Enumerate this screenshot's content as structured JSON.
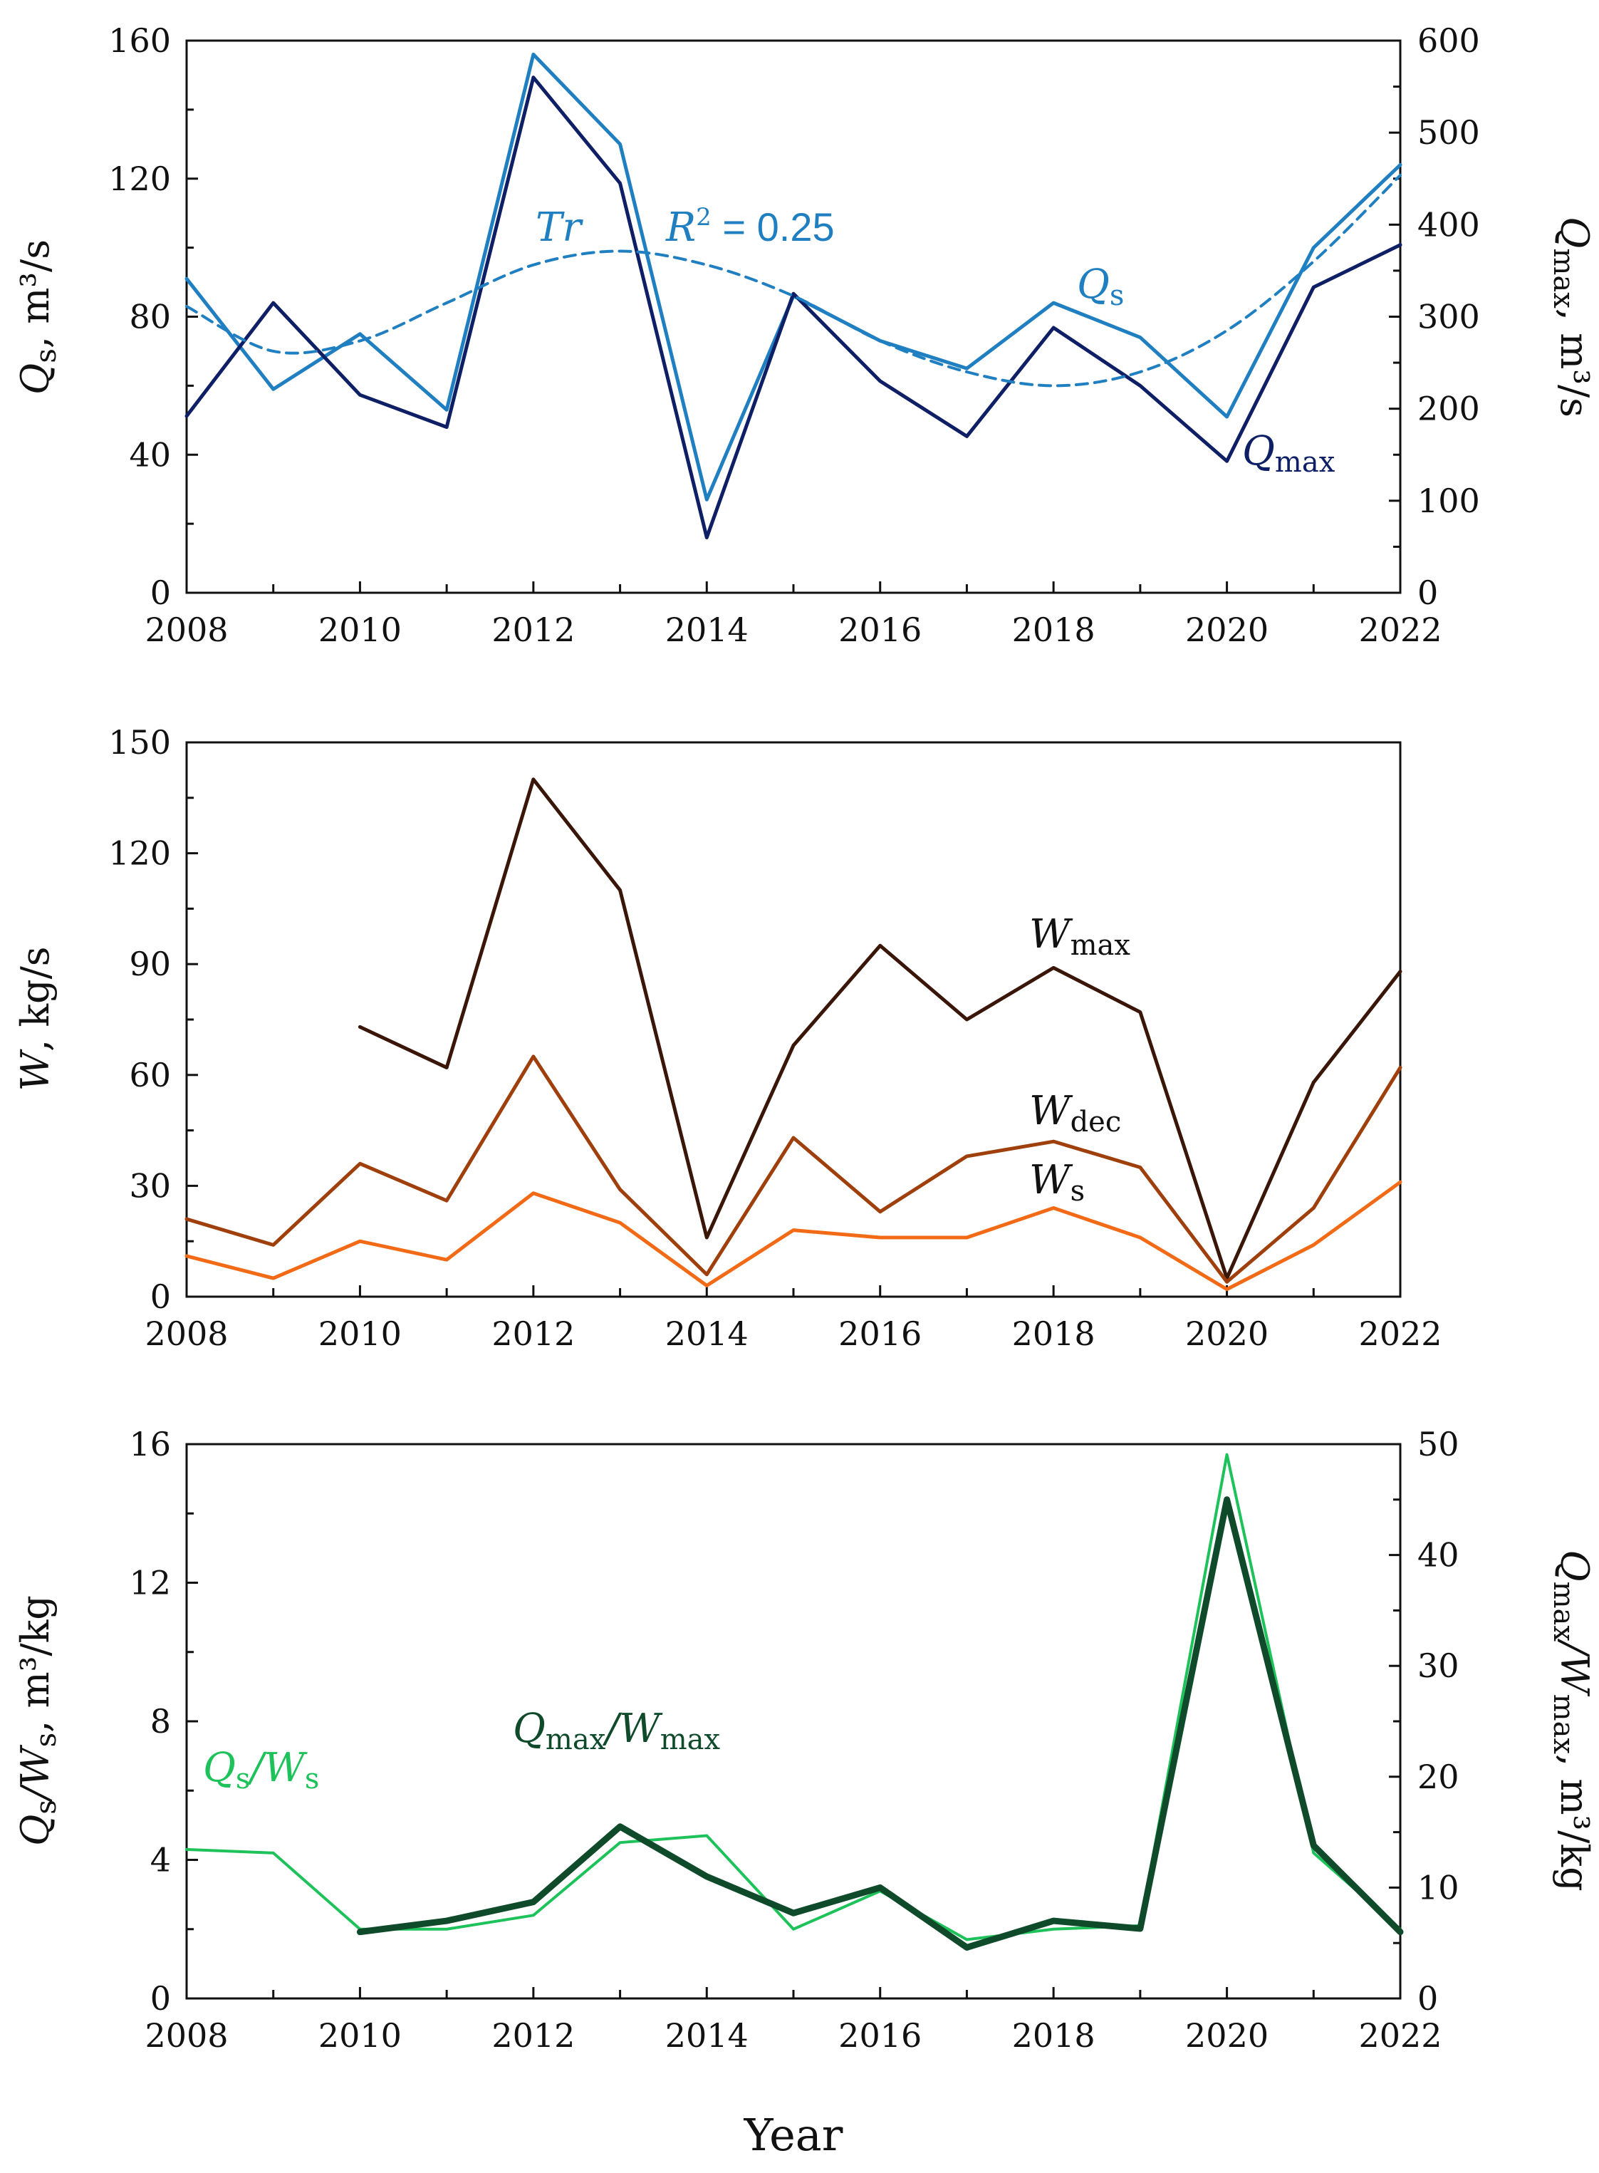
{
  "chart_data": [
    {
      "type": "line",
      "x": [
        2008,
        2009,
        2010,
        2011,
        2012,
        2013,
        2014,
        2015,
        2016,
        2017,
        2018,
        2019,
        2020,
        2021,
        2022
      ],
      "xlim": [
        2008,
        2022
      ],
      "xticks": [
        "2008",
        "2010",
        "2012",
        "2014",
        "2016",
        "2018",
        "2020",
        "2022"
      ],
      "ylabel": "Qs, m³/s",
      "ylim": [
        0,
        160
      ],
      "yticks": [
        "0",
        "40",
        "80",
        "120",
        "160"
      ],
      "y2label": "Qmax, m³/s",
      "y2lim": [
        0,
        600
      ],
      "y2ticks": [
        "0",
        "100",
        "200",
        "300",
        "400",
        "500",
        "600"
      ],
      "series": [
        {
          "name": "Qs",
          "label_main": "Q",
          "label_sub": "s",
          "axis": "left",
          "color": "#1f7fc0",
          "values": [
            91,
            59,
            75,
            53,
            156,
            130,
            27,
            86,
            73,
            65,
            84,
            74,
            51,
            100,
            124
          ]
        },
        {
          "name": "Qmax",
          "label_main": "Q",
          "label_sub": "max",
          "axis": "right",
          "color": "#0e1f66",
          "values": [
            192,
            315,
            215,
            180,
            560,
            445,
            60,
            325,
            230,
            170,
            288,
            225,
            143,
            332,
            378
          ]
        },
        {
          "name": "Tr",
          "label_main": "Tr",
          "style": "dashed",
          "axis": "left",
          "color": "#1f7fc0",
          "values": [
            83,
            70,
            73,
            84,
            95,
            99,
            95,
            86,
            73,
            64,
            60,
            64,
            76,
            96,
            121
          ]
        }
      ],
      "annotation": {
        "r_main": "R",
        "r_exp": "2",
        "r_value": " = 0.25"
      }
    },
    {
      "type": "line",
      "x": [
        2008,
        2009,
        2010,
        2011,
        2012,
        2013,
        2014,
        2015,
        2016,
        2017,
        2018,
        2019,
        2020,
        2021,
        2022
      ],
      "xlim": [
        2008,
        2022
      ],
      "xticks": [
        "2008",
        "2010",
        "2012",
        "2014",
        "2016",
        "2018",
        "2020",
        "2022"
      ],
      "ylabel": "W, kg/s",
      "ylim": [
        0,
        150
      ],
      "yticks": [
        "0",
        "30",
        "60",
        "90",
        "120",
        "150"
      ],
      "series": [
        {
          "name": "Wmax",
          "label_main": "W",
          "label_sub": "max",
          "color": "#3a1608",
          "values": [
            null,
            null,
            73,
            62,
            140,
            110,
            16,
            68,
            95,
            75,
            89,
            77,
            5,
            58,
            88
          ]
        },
        {
          "name": "Wdec",
          "label_main": "W",
          "label_sub": "dec",
          "color": "#9e3f0c",
          "values": [
            21,
            14,
            36,
            26,
            65,
            29,
            6,
            43,
            23,
            38,
            42,
            35,
            4,
            24,
            62
          ]
        },
        {
          "name": "Ws",
          "label_main": "W",
          "label_sub": "s",
          "color": "#f26a15",
          "values": [
            11,
            5,
            15,
            10,
            28,
            20,
            3,
            18,
            16,
            16,
            24,
            16,
            2,
            14,
            31
          ]
        }
      ]
    },
    {
      "type": "line",
      "x": [
        2008,
        2009,
        2010,
        2011,
        2012,
        2013,
        2014,
        2015,
        2016,
        2017,
        2018,
        2019,
        2020,
        2021,
        2022
      ],
      "xlim": [
        2008,
        2022
      ],
      "xticks": [
        "2008",
        "2010",
        "2012",
        "2014",
        "2016",
        "2018",
        "2020",
        "2022"
      ],
      "xlabel": "Year",
      "ylabel": "Qs/Ws, m³/kg",
      "ylim": [
        0,
        16
      ],
      "yticks": [
        "0",
        "4",
        "8",
        "12",
        "16"
      ],
      "y2label": "Qmax/Wmax, m³/kg",
      "y2lim": [
        0,
        50
      ],
      "y2ticks": [
        "0",
        "10",
        "20",
        "30",
        "40",
        "50"
      ],
      "series": [
        {
          "name": "Qs/Ws",
          "label_main": "Q",
          "label_sub": "s",
          "label_mid": "/W",
          "label_sub2": "s",
          "axis": "left",
          "color": "#1ec25a",
          "values": [
            4.3,
            4.2,
            2.0,
            2.0,
            2.4,
            4.5,
            4.7,
            2.0,
            3.1,
            1.7,
            2.0,
            2.1,
            15.7,
            4.2,
            2.0
          ]
        },
        {
          "name": "Qmax/Wmax",
          "label_main": "Q",
          "label_sub": "max",
          "label_mid": "/W",
          "label_sub2": "max",
          "axis": "right",
          "color": "#0f4a2a",
          "values": [
            null,
            null,
            6.0,
            7.0,
            8.7,
            15.5,
            11.0,
            7.7,
            10.0,
            4.6,
            7.0,
            6.3,
            45.0,
            13.8,
            6.0
          ]
        }
      ]
    }
  ]
}
